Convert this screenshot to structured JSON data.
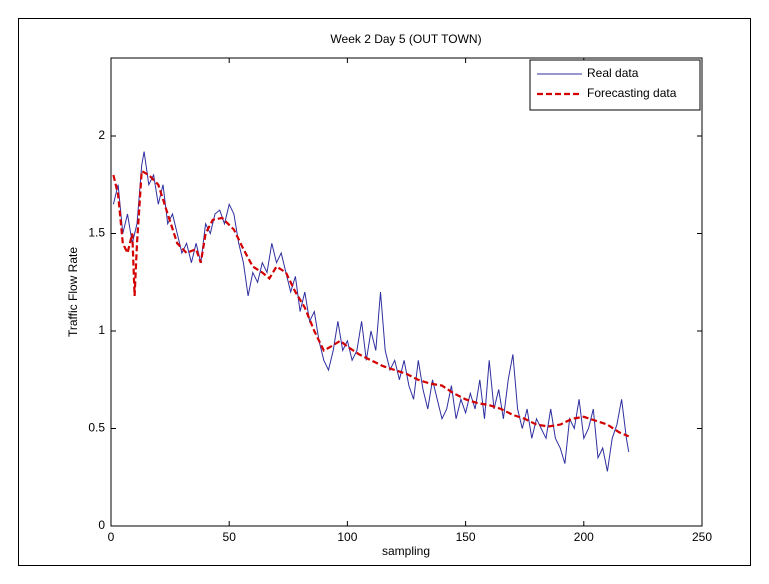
{
  "chart_data": {
    "type": "line",
    "title": "Week 2 Day 5 (OUT TOWN)",
    "x_label": "sampling",
    "y_label": "Traffic Flow Rate",
    "xlim": [
      0,
      250
    ],
    "ylim": [
      0,
      2.4
    ],
    "xticks": [
      0,
      50,
      100,
      150,
      200,
      250
    ],
    "yticks": [
      0,
      0.5,
      1,
      1.5,
      2
    ],
    "legend": "northeast",
    "grid": false,
    "series": [
      {
        "name": "Real data",
        "color": "#2f2fa0",
        "style": "solid",
        "x": [
          1,
          3,
          5,
          7,
          9,
          11,
          13,
          14,
          16,
          18,
          20,
          22,
          24,
          26,
          28,
          30,
          32,
          34,
          36,
          38,
          40,
          42,
          44,
          46,
          48,
          50,
          52,
          54,
          56,
          58,
          60,
          62,
          64,
          66,
          68,
          70,
          72,
          74,
          76,
          78,
          80,
          82,
          84,
          86,
          88,
          90,
          92,
          94,
          96,
          98,
          100,
          102,
          104,
          106,
          108,
          110,
          112,
          114,
          116,
          118,
          120,
          122,
          124,
          126,
          128,
          130,
          132,
          134,
          136,
          138,
          140,
          142,
          144,
          146,
          148,
          150,
          152,
          154,
          156,
          158,
          160,
          162,
          164,
          166,
          168,
          170,
          172,
          174,
          176,
          178,
          180,
          182,
          184,
          186,
          188,
          190,
          192,
          194,
          196,
          198,
          200,
          202,
          204,
          206,
          208,
          210,
          212,
          214,
          216,
          218,
          219
        ],
        "values": [
          1.65,
          1.75,
          1.5,
          1.6,
          1.45,
          1.55,
          1.85,
          1.92,
          1.75,
          1.8,
          1.65,
          1.75,
          1.55,
          1.6,
          1.5,
          1.4,
          1.45,
          1.35,
          1.45,
          1.35,
          1.55,
          1.5,
          1.6,
          1.62,
          1.55,
          1.65,
          1.6,
          1.45,
          1.35,
          1.18,
          1.3,
          1.25,
          1.35,
          1.3,
          1.45,
          1.35,
          1.4,
          1.3,
          1.2,
          1.28,
          1.1,
          1.2,
          1.05,
          1.1,
          0.95,
          0.85,
          0.8,
          0.9,
          1.05,
          0.9,
          0.95,
          0.85,
          0.9,
          1.05,
          0.85,
          1.0,
          0.9,
          1.2,
          0.9,
          0.8,
          0.85,
          0.75,
          0.85,
          0.72,
          0.65,
          0.85,
          0.7,
          0.6,
          0.75,
          0.65,
          0.55,
          0.6,
          0.72,
          0.55,
          0.65,
          0.58,
          0.68,
          0.6,
          0.75,
          0.55,
          0.85,
          0.6,
          0.7,
          0.55,
          0.75,
          0.88,
          0.6,
          0.5,
          0.6,
          0.45,
          0.55,
          0.5,
          0.45,
          0.6,
          0.45,
          0.4,
          0.32,
          0.55,
          0.5,
          0.65,
          0.45,
          0.5,
          0.6,
          0.35,
          0.4,
          0.28,
          0.45,
          0.52,
          0.65,
          0.45,
          0.38
        ]
      },
      {
        "name": "Forecasting data",
        "color": "#d40000",
        "style": "dashed",
        "x": [
          1,
          3,
          5,
          7,
          9,
          10,
          11,
          13,
          16,
          20,
          24,
          28,
          32,
          36,
          38,
          40,
          43,
          47,
          52,
          56,
          60,
          64,
          67,
          70,
          74,
          78,
          82,
          86,
          90,
          93,
          97,
          100,
          105,
          110,
          115,
          120,
          125,
          130,
          135,
          140,
          145,
          150,
          155,
          160,
          165,
          170,
          175,
          180,
          185,
          190,
          195,
          200,
          205,
          210,
          215,
          219
        ],
        "values": [
          1.8,
          1.7,
          1.45,
          1.4,
          1.5,
          1.18,
          1.45,
          1.82,
          1.8,
          1.75,
          1.6,
          1.45,
          1.4,
          1.42,
          1.35,
          1.5,
          1.57,
          1.58,
          1.52,
          1.42,
          1.33,
          1.3,
          1.27,
          1.33,
          1.3,
          1.2,
          1.12,
          1.0,
          0.9,
          0.92,
          0.95,
          0.92,
          0.88,
          0.85,
          0.82,
          0.8,
          0.78,
          0.75,
          0.73,
          0.72,
          0.68,
          0.65,
          0.63,
          0.62,
          0.6,
          0.57,
          0.55,
          0.52,
          0.51,
          0.52,
          0.55,
          0.56,
          0.54,
          0.52,
          0.48,
          0.46
        ]
      }
    ]
  }
}
